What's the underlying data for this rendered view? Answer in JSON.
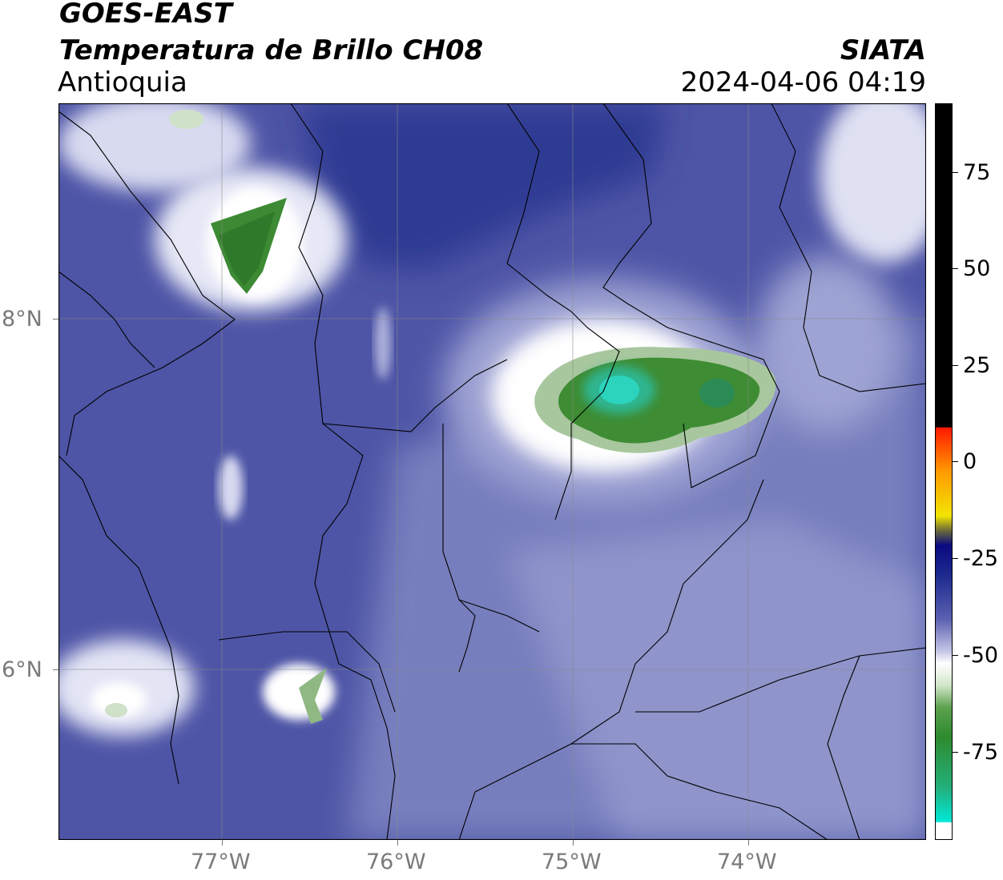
{
  "header": {
    "satellite": "GOES-EAST",
    "product": "Temperatura de Brillo CH08",
    "region": "Antioquia",
    "brand": "SIATA",
    "timestamp": "2024-04-06 04:19"
  },
  "map": {
    "x_ticks": [
      "77°W",
      "76°W",
      "75°W",
      "74°W"
    ],
    "y_ticks": [
      "8°N",
      "6°N"
    ]
  },
  "colorbar": {
    "ticks": [
      "75",
      "50",
      "25",
      "0",
      "-25",
      "-50",
      "-75"
    ],
    "colors": {
      "hot": "#000000",
      "warm": "#ff2a00",
      "mid": "#1a2a8a",
      "cold": "#ffffff",
      "very_cold": "#3a8a2a",
      "coldest": "#00e6d6"
    }
  }
}
